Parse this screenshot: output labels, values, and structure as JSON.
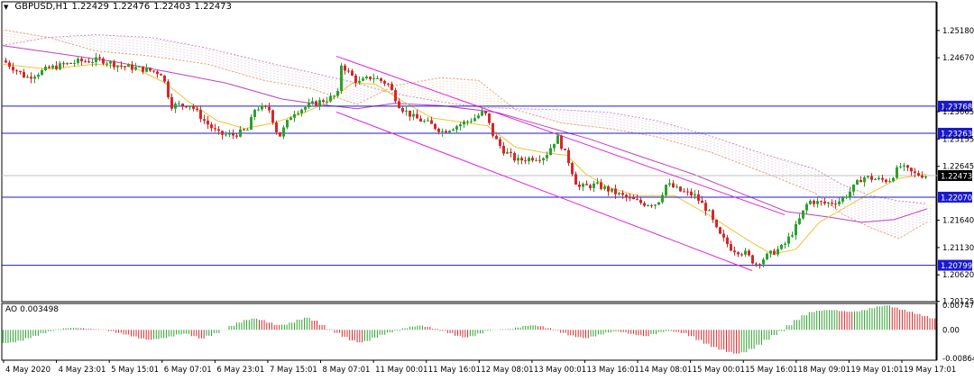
{
  "header": {
    "symbol": "GBPUSD,H1",
    "open": "1.22429",
    "high": "1.22476",
    "low": "1.22403",
    "close": "1.22473"
  },
  "ao_header": {
    "name": "AO",
    "value": "0.003498"
  },
  "colors": {
    "bull": "#2ca02c",
    "bear": "#d62728",
    "hline": "#1a1acc",
    "channel": "#e020e0",
    "ma_fast": "#f2c232",
    "ma_slow": "#c040c0",
    "cloud_a": "#e8a070",
    "cloud_b": "#c090c0",
    "bid_line": "#c0c0c0"
  },
  "chart_data": [
    {
      "type": "candlestick",
      "title": "GBPUSD,H1",
      "ylim": [
        1.2012,
        1.2548
      ],
      "x_labels": [
        "4 May 2020",
        "4 May 23:01",
        "5 May 15:01",
        "6 May 07:01",
        "6 May 23:01",
        "7 May 15:01",
        "8 May 07:01",
        "11 May 00:01",
        "11 May 16:01",
        "12 May 08:01",
        "13 May 00:01",
        "13 May 16:01",
        "14 May 08:01",
        "15 May 00:01",
        "15 May 16:01",
        "18 May 09:01",
        "19 May 01:01",
        "19 May 17:01"
      ],
      "y_ticks": [
        "1.25180",
        "1.24670",
        "1.23665",
        "1.23155",
        "1.22645",
        "1.21640",
        "1.21130",
        "1.20620",
        "1.20125"
      ],
      "horizontal_lines": [
        {
          "value": 1.23768,
          "label": "1.23768"
        },
        {
          "value": 1.23263,
          "label": "1.23263"
        },
        {
          "value": 1.2207,
          "label": "1.22070"
        },
        {
          "value": 1.20799,
          "label": "1.20799"
        }
      ],
      "current_price": {
        "value": 1.22473,
        "label": "1.22473"
      },
      "channel": {
        "upper": [
          [
            0.358,
            1.247
          ],
          [
            0.838,
            1.2174
          ]
        ],
        "lower": [
          [
            0.358,
            1.2366
          ],
          [
            0.803,
            1.207
          ]
        ]
      },
      "price_path": [
        [
          0.0,
          1.2462
        ],
        [
          0.025,
          1.243
        ],
        [
          0.05,
          1.2448
        ],
        [
          0.08,
          1.246
        ],
        [
          0.105,
          1.2463
        ],
        [
          0.125,
          1.2452
        ],
        [
          0.15,
          1.2446
        ],
        [
          0.17,
          1.2438
        ],
        [
          0.18,
          1.2378
        ],
        [
          0.2,
          1.238
        ],
        [
          0.215,
          1.235
        ],
        [
          0.23,
          1.2325
        ],
        [
          0.245,
          1.2322
        ],
        [
          0.262,
          1.2333
        ],
        [
          0.27,
          1.2375
        ],
        [
          0.285,
          1.237
        ],
        [
          0.295,
          1.2318
        ],
        [
          0.31,
          1.2365
        ],
        [
          0.33,
          1.238
        ],
        [
          0.35,
          1.2392
        ],
        [
          0.358,
          1.2398
        ],
        [
          0.362,
          1.2455
        ],
        [
          0.38,
          1.242
        ],
        [
          0.395,
          1.2432
        ],
        [
          0.412,
          1.2418
        ],
        [
          0.425,
          1.2375
        ],
        [
          0.44,
          1.2355
        ],
        [
          0.455,
          1.2345
        ],
        [
          0.47,
          1.233
        ],
        [
          0.485,
          1.234
        ],
        [
          0.505,
          1.2355
        ],
        [
          0.515,
          1.2367
        ],
        [
          0.525,
          1.232
        ],
        [
          0.535,
          1.2295
        ],
        [
          0.55,
          1.2275
        ],
        [
          0.565,
          1.228
        ],
        [
          0.58,
          1.2283
        ],
        [
          0.593,
          1.232
        ],
        [
          0.605,
          1.2275
        ],
        [
          0.615,
          1.2225
        ],
        [
          0.635,
          1.223
        ],
        [
          0.655,
          1.2215
        ],
        [
          0.668,
          1.2205
        ],
        [
          0.685,
          1.2195
        ],
        [
          0.7,
          1.2195
        ],
        [
          0.71,
          1.2232
        ],
        [
          0.725,
          1.2218
        ],
        [
          0.74,
          1.221
        ],
        [
          0.755,
          1.218
        ],
        [
          0.765,
          1.214
        ],
        [
          0.78,
          1.211
        ],
        [
          0.795,
          1.2102
        ],
        [
          0.805,
          1.2082
        ],
        [
          0.82,
          1.21
        ],
        [
          0.835,
          1.2115
        ],
        [
          0.848,
          1.215
        ],
        [
          0.862,
          1.22
        ],
        [
          0.88,
          1.2195
        ],
        [
          0.895,
          1.22
        ],
        [
          0.905,
          1.2215
        ],
        [
          0.92,
          1.2245
        ],
        [
          0.935,
          1.224
        ],
        [
          0.948,
          1.2238
        ],
        [
          0.96,
          1.2265
        ],
        [
          0.975,
          1.225
        ],
        [
          0.99,
          1.2247
        ]
      ],
      "ma_fast_path": [
        [
          0.0,
          1.2455
        ],
        [
          0.05,
          1.2446
        ],
        [
          0.1,
          1.2455
        ],
        [
          0.14,
          1.245
        ],
        [
          0.175,
          1.242
        ],
        [
          0.2,
          1.2385
        ],
        [
          0.23,
          1.235
        ],
        [
          0.26,
          1.2335
        ],
        [
          0.29,
          1.2345
        ],
        [
          0.32,
          1.2362
        ],
        [
          0.35,
          1.2385
        ],
        [
          0.375,
          1.242
        ],
        [
          0.4,
          1.2418
        ],
        [
          0.43,
          1.2385
        ],
        [
          0.46,
          1.2355
        ],
        [
          0.5,
          1.2345
        ],
        [
          0.52,
          1.234
        ],
        [
          0.55,
          1.23
        ],
        [
          0.58,
          1.229
        ],
        [
          0.605,
          1.2285
        ],
        [
          0.625,
          1.225
        ],
        [
          0.65,
          1.2225
        ],
        [
          0.68,
          1.221
        ],
        [
          0.72,
          1.221
        ],
        [
          0.76,
          1.217
        ],
        [
          0.8,
          1.2125
        ],
        [
          0.825,
          1.21
        ],
        [
          0.85,
          1.211
        ],
        [
          0.875,
          1.216
        ],
        [
          0.9,
          1.2185
        ],
        [
          0.93,
          1.2215
        ],
        [
          0.96,
          1.2242
        ],
        [
          0.99,
          1.225
        ]
      ],
      "ma_slow_path": [
        [
          0.0,
          1.249
        ],
        [
          0.06,
          1.2475
        ],
        [
          0.12,
          1.246
        ],
        [
          0.18,
          1.244
        ],
        [
          0.24,
          1.242
        ],
        [
          0.3,
          1.239
        ],
        [
          0.34,
          1.238
        ],
        [
          0.38,
          1.2372
        ],
        [
          0.42,
          1.2382
        ],
        [
          0.47,
          1.2378
        ],
        [
          0.53,
          1.2365
        ],
        [
          0.58,
          1.234
        ],
        [
          0.63,
          1.2315
        ],
        [
          0.68,
          1.2285
        ],
        [
          0.74,
          1.225
        ],
        [
          0.79,
          1.2215
        ],
        [
          0.84,
          1.218
        ],
        [
          0.885,
          1.217
        ],
        [
          0.92,
          1.216
        ],
        [
          0.955,
          1.2165
        ],
        [
          0.99,
          1.2185
        ]
      ],
      "cloud_a_path": [
        [
          0.0,
          1.252
        ],
        [
          0.05,
          1.2505
        ],
        [
          0.1,
          1.248
        ],
        [
          0.16,
          1.247
        ],
        [
          0.22,
          1.2455
        ],
        [
          0.28,
          1.2425
        ],
        [
          0.33,
          1.241
        ],
        [
          0.38,
          1.238
        ],
        [
          0.42,
          1.2415
        ],
        [
          0.47,
          1.243
        ],
        [
          0.51,
          1.2425
        ],
        [
          0.55,
          1.237
        ],
        [
          0.6,
          1.2345
        ],
        [
          0.65,
          1.2335
        ],
        [
          0.7,
          1.232
        ],
        [
          0.76,
          1.229
        ],
        [
          0.82,
          1.225
        ],
        [
          0.87,
          1.2215
        ],
        [
          0.9,
          1.2175
        ],
        [
          0.93,
          1.215
        ],
        [
          0.96,
          1.213
        ],
        [
          0.99,
          1.216
        ]
      ],
      "cloud_b_path": [
        [
          0.0,
          1.249
        ],
        [
          0.05,
          1.2505
        ],
        [
          0.1,
          1.251
        ],
        [
          0.16,
          1.2505
        ],
        [
          0.22,
          1.2485
        ],
        [
          0.28,
          1.246
        ],
        [
          0.33,
          1.244
        ],
        [
          0.38,
          1.242
        ],
        [
          0.42,
          1.24
        ],
        [
          0.47,
          1.2385
        ],
        [
          0.51,
          1.2375
        ],
        [
          0.55,
          1.2372
        ],
        [
          0.6,
          1.237
        ],
        [
          0.65,
          1.2365
        ],
        [
          0.7,
          1.235
        ],
        [
          0.76,
          1.232
        ],
        [
          0.82,
          1.2285
        ],
        [
          0.87,
          1.226
        ],
        [
          0.9,
          1.223
        ],
        [
          0.93,
          1.221
        ],
        [
          0.96,
          1.22
        ],
        [
          0.99,
          1.2195
        ]
      ]
    },
    {
      "type": "bar",
      "title": "AO",
      "value": "0.003498",
      "ylim": [
        -0.0092,
        0.008
      ],
      "y_ticks": [
        "0.007478",
        "0.00",
        "-0.008643"
      ],
      "values": [
        -0.004,
        -0.0038,
        -0.0033,
        -0.0025,
        -0.0018,
        -0.001,
        -0.0004,
        0.0002,
        0.0005,
        0.0006,
        0.0005,
        0.0003,
        0.0002,
        0.0001,
        -0.0004,
        -0.0009,
        -0.0014,
        -0.002,
        -0.0026,
        -0.003,
        -0.0028,
        -0.0025,
        -0.002,
        -0.0014,
        -0.0012,
        -0.0019,
        -0.0026,
        -0.0018,
        -0.001,
        0.0001,
        0.0012,
        0.0022,
        0.003,
        0.0034,
        0.003,
        0.0022,
        0.0015,
        0.0016,
        0.0022,
        0.0031,
        0.0037,
        0.0028,
        0.0015,
        0.0002,
        -0.0009,
        -0.0021,
        -0.0032,
        -0.0038,
        -0.0034,
        -0.0024,
        -0.0015,
        -0.0008,
        -0.0003,
        0.0005,
        0.001,
        0.0013,
        0.0009,
        0.0003,
        -0.0003,
        -0.001,
        -0.0018,
        -0.0023,
        -0.0019,
        -0.0011,
        -0.0003,
        0.0001,
        0.0002,
        0.0003,
        0.0007,
        0.0012,
        0.0014,
        0.0011,
        0.0005,
        -0.0002,
        -0.0009,
        -0.0017,
        -0.0022,
        -0.0025,
        -0.002,
        -0.0014,
        -0.0008,
        -0.0005,
        -0.0007,
        -0.0012,
        -0.0016,
        -0.0019,
        -0.0013,
        -0.0007,
        -0.0004,
        -0.0006,
        -0.001,
        -0.0019,
        -0.0031,
        -0.0042,
        -0.0052,
        -0.006,
        -0.0067,
        -0.0072,
        -0.0068,
        -0.0058,
        -0.0045,
        -0.003,
        -0.0016,
        -0.0004,
        0.0014,
        0.003,
        0.0044,
        0.0054,
        0.0058,
        0.006,
        0.006,
        0.0057,
        0.0055,
        0.0056,
        0.006,
        0.0066,
        0.0071,
        0.0074,
        0.0068,
        0.0061,
        0.0055,
        0.0048,
        0.0042,
        0.0035
      ]
    }
  ]
}
